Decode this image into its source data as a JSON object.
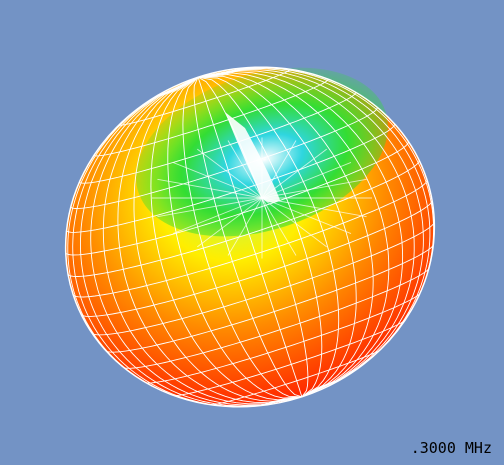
{
  "view": {
    "background": "#7393c5",
    "frequency_label": ".3000 MHz"
  },
  "pattern": {
    "type": "3d-radiation-pattern",
    "shape": "torus-like lobe with a null toward the top",
    "mesh_color": "#ffffff",
    "colormap": [
      "#ff1a00",
      "#ff8a00",
      "#ffee00",
      "#33dd33",
      "#22dddd",
      "#ffffff"
    ]
  }
}
